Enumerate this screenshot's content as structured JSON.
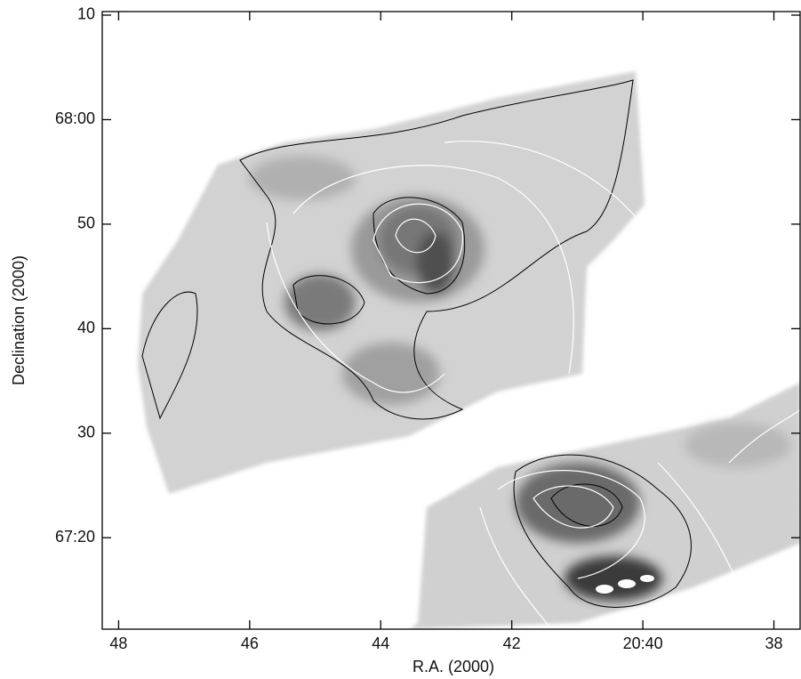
{
  "chart_data": {
    "type": "image",
    "x_label": "R.A. (2000)",
    "y_label": "Declination (2000)",
    "xlim": [
      48.25,
      37.6
    ],
    "ylim": [
      11.25,
      70.34
    ],
    "xticks": [
      48,
      46,
      44,
      42,
      {
        "value": 40,
        "label": "20:40"
      },
      38
    ],
    "yticks": [
      {
        "value": 70,
        "label": "10"
      },
      {
        "value": 60,
        "label": "68:00"
      },
      50,
      40,
      30,
      {
        "value": 20,
        "label": "67:20"
      }
    ]
  }
}
